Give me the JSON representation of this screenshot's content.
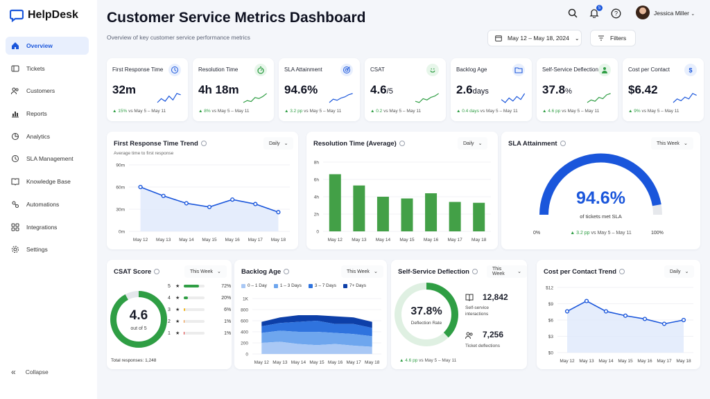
{
  "app": {
    "name": "HelpDesk",
    "brand_color": "#1a56db"
  },
  "sidebar": {
    "items": [
      {
        "label": "Overview",
        "icon": "home-icon",
        "active": true
      },
      {
        "label": "Tickets",
        "icon": "ticket-icon"
      },
      {
        "label": "Customers",
        "icon": "users-icon"
      },
      {
        "label": "Reports",
        "icon": "bar-chart-icon"
      },
      {
        "label": "Analytics",
        "icon": "pie-chart-icon"
      },
      {
        "label": "SLA Management",
        "icon": "clock-icon"
      },
      {
        "label": "Knowledge Base",
        "icon": "book-icon"
      },
      {
        "label": "Automations",
        "icon": "automation-icon"
      },
      {
        "label": "Integrations",
        "icon": "integrations-icon"
      },
      {
        "label": "Settings",
        "icon": "gear-icon"
      }
    ],
    "collapse_label": "Collapse"
  },
  "header": {
    "title": "Customer Service Metrics Dashboard",
    "subtitle": "Overview of key customer service performance metrics",
    "notification_count": "5",
    "user_name": "Jessica Miller",
    "date_range": "May 12 – May 18, 2024",
    "filters_label": "Filters"
  },
  "kpis": [
    {
      "title": "First Response Time",
      "value": "32m",
      "unit": "",
      "delta": "15%",
      "compare": "vs May 5 – May 11",
      "icon": "clock-icon",
      "icon_color": "#1a56db",
      "icon_bg": "#e8effd"
    },
    {
      "title": "Resolution Time",
      "value": "4h 18m",
      "unit": "",
      "delta": "8%",
      "compare": "vs May 5 – May 11",
      "icon": "stopwatch-icon",
      "icon_color": "#2f9e44",
      "icon_bg": "#e7f6ea"
    },
    {
      "title": "SLA Attainment",
      "value": "94.6%",
      "unit": "",
      "delta": "3.2 pp",
      "compare": "vs May 5 – May 11",
      "icon": "target-icon",
      "icon_color": "#1a56db",
      "icon_bg": "#e8effd"
    },
    {
      "title": "CSAT",
      "value": "4.6",
      "unit": "/5",
      "delta": "0.2",
      "compare": "vs May 5 – May 11",
      "icon": "smile-icon",
      "icon_color": "#2f9e44",
      "icon_bg": "#e7f6ea"
    },
    {
      "title": "Backlog Age",
      "value": "2.6",
      "unit": "days",
      "delta": "0.4 days",
      "compare": "vs May 5 – May 11",
      "icon": "folder-icon",
      "icon_color": "#1a56db",
      "icon_bg": "#e8effd"
    },
    {
      "title": "Self-Service Deflection",
      "value": "37.8",
      "unit": "%",
      "delta": "4.6 pp",
      "compare": "vs May 5 – May 11",
      "icon": "person-icon",
      "icon_color": "#2f9e44",
      "icon_bg": "#e7f6ea"
    },
    {
      "title": "Cost per Contact",
      "value": "$6.42",
      "unit": "",
      "delta": "9%",
      "compare": "vs May 5 – May 11",
      "icon": "dollar-icon",
      "icon_color": "#1a56db",
      "icon_bg": "#e8effd"
    }
  ],
  "frt_trend": {
    "title": "First Response Time Trend",
    "subtitle": "Average time to first response",
    "dropdown": "Daily"
  },
  "resolution": {
    "title": "Resolution Time (Average)",
    "dropdown": "Daily"
  },
  "sla": {
    "title": "SLA Attainment",
    "dropdown": "This Week",
    "value": "94.6%",
    "label": "of tickets met SLA",
    "min_label": "0%",
    "max_label": "100%",
    "delta": "3.2 pp",
    "compare": "vs May 5 – May 11",
    "fraction": 0.946
  },
  "csat": {
    "title": "CSAT Score",
    "dropdown": "This Week",
    "value": "4.6",
    "out_of": "out of 5",
    "fraction": 0.92,
    "total": "Total responses: 1,248",
    "ratings": [
      {
        "stars": "5",
        "pct": "72%",
        "fraction": 0.72,
        "color": "#2f9e44"
      },
      {
        "stars": "4",
        "pct": "20%",
        "fraction": 0.2,
        "color": "#2f9e44"
      },
      {
        "stars": "3",
        "pct": "6%",
        "fraction": 0.06,
        "color": "#f2b61b"
      },
      {
        "stars": "2",
        "pct": "1%",
        "fraction": 0.01,
        "color": "#f28c28"
      },
      {
        "stars": "1",
        "pct": "1%",
        "fraction": 0.01,
        "color": "#e03131"
      }
    ]
  },
  "backlog": {
    "title": "Backlog Age",
    "dropdown": "This Week"
  },
  "deflection": {
    "title": "Self-Service Deflection",
    "dropdown": "This Week",
    "value": "37.8%",
    "label": "Deflection Rate",
    "fraction": 0.378,
    "interactions": "12,842",
    "interactions_label": "Self-service interactions",
    "deflections": "7,256",
    "deflections_label": "Ticket deflections",
    "delta": "4.6 pp",
    "compare": "vs May 5 – May 11"
  },
  "cost_trend": {
    "title": "Cost per Contact Trend",
    "dropdown": "Daily"
  },
  "chart_data": [
    {
      "type": "line",
      "id": "frt",
      "x": [
        "May 12",
        "May 13",
        "May 14",
        "May 15",
        "May 16",
        "May 17",
        "May 18"
      ],
      "values": [
        60,
        48,
        38,
        33,
        43,
        37,
        26
      ],
      "ylabels": [
        "0m",
        "30m",
        "60m",
        "90m"
      ],
      "ylim": [
        0,
        90
      ],
      "color": "#1a56db"
    },
    {
      "type": "bar",
      "id": "res",
      "categories": [
        "May 12",
        "May 13",
        "May 14",
        "May 15",
        "May 16",
        "May 17",
        "May 18"
      ],
      "values": [
        6.6,
        5.3,
        4.0,
        3.8,
        4.4,
        3.4,
        3.3
      ],
      "ylabels": [
        "0",
        "2h",
        "4h",
        "6h",
        "8h"
      ],
      "ylim": [
        0,
        8
      ],
      "color": "#43a047"
    },
    {
      "type": "area",
      "id": "backlog",
      "x": [
        "May 12",
        "May 13",
        "May 14",
        "May 15",
        "May 16",
        "May 17",
        "May 18"
      ],
      "ylabels": [
        "0",
        "200",
        "400",
        "600",
        "800",
        "1K"
      ],
      "ylim": [
        0,
        1000
      ],
      "series": [
        {
          "name": "0 – 1 Day",
          "color": "#a9c8f5",
          "values": [
            200,
            220,
            180,
            160,
            180,
            150,
            130
          ]
        },
        {
          "name": "1 – 3 Days",
          "color": "#6ea6ee",
          "values": [
            180,
            200,
            220,
            240,
            200,
            210,
            190
          ]
        },
        {
          "name": "3 – 7 Days",
          "color": "#2f73de",
          "values": [
            120,
            140,
            180,
            200,
            160,
            180,
            150
          ]
        },
        {
          "name": "7+ Days",
          "color": "#0d3fa8",
          "values": [
            80,
            100,
            120,
            100,
            140,
            120,
            110
          ]
        }
      ]
    },
    {
      "type": "line",
      "id": "cost",
      "x": [
        "May 12",
        "May 13",
        "May 14",
        "May 15",
        "May 16",
        "May 17",
        "May 18"
      ],
      "values": [
        7.6,
        9.5,
        7.6,
        6.8,
        6.2,
        5.3,
        6.0
      ],
      "ylabels": [
        "$0",
        "$3",
        "$6",
        "$9",
        "$12"
      ],
      "ylim": [
        0,
        12
      ],
      "color": "#1a56db"
    }
  ]
}
